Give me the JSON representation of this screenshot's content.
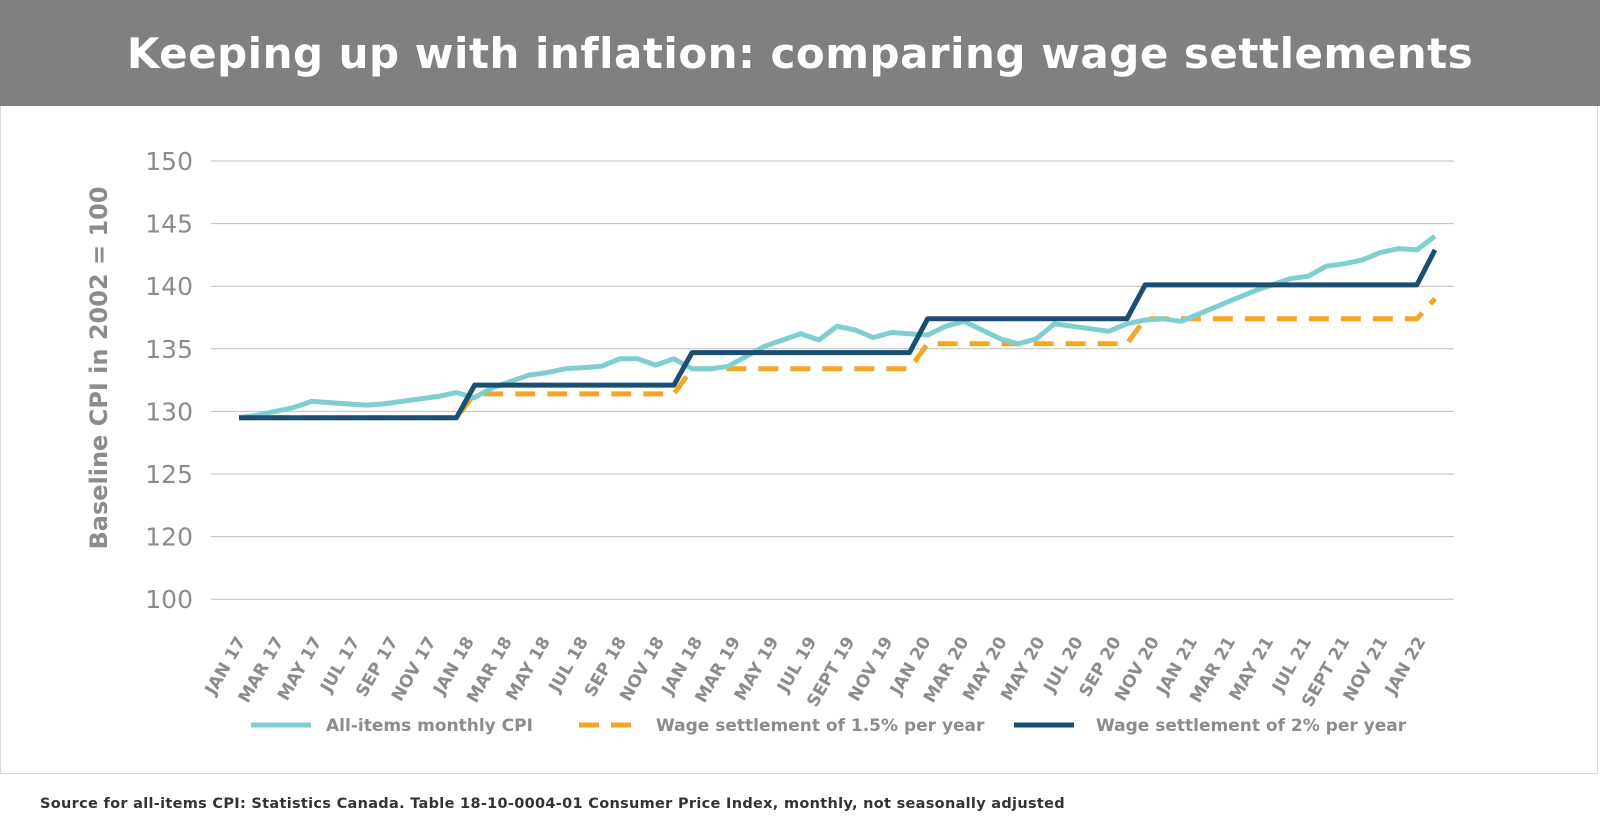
{
  "title": "Keeping up with inflation: comparing wage settlements",
  "source": "Source for all-items CPI: Statistics Canada. Table 18-10-0004-01 Consumer Price Index, monthly, not seasonally adjusted",
  "chart_data": {
    "type": "line",
    "ylabel": "Baseline CPI in 2002 = 100",
    "xlabel": "",
    "y_ticks": [
      "150",
      "145",
      "140",
      "135",
      "130",
      "125",
      "120",
      "100"
    ],
    "ylim_note": "axis break below 120: bottom gridline labeled 100",
    "x_tick_labels": [
      "JAN 17",
      "MAR 17",
      "MAY 17",
      "JUL 17",
      "SEP 17",
      "NOV 17",
      "JAN 18",
      "MAR 18",
      "MAY 18",
      "JUL 18",
      "SEP 18",
      "NOV 18",
      "JAN 18",
      "MAR 19",
      "MAY 19",
      "JUL 19",
      "SEPT 19",
      "NOV 19",
      "JAN 20",
      "MAR 20",
      "MAY 20",
      "MAY 20",
      "JUL 20",
      "SEP 20",
      "NOV 20",
      "JAN 21",
      "MAR 21",
      "MAY 21",
      "JUL 21",
      "SEPT 21",
      "NOV 21",
      "JAN 22"
    ],
    "grid": true,
    "legend_position": "bottom",
    "series": [
      {
        "name": "All-items monthly CPI",
        "color": "#7fcfcf",
        "dash": "solid",
        "values": [
          129.5,
          129.7,
          130.0,
          130.3,
          130.8,
          130.7,
          130.6,
          130.5,
          130.6,
          130.8,
          131.0,
          131.2,
          131.5,
          131.1,
          131.9,
          132.4,
          132.9,
          133.1,
          133.4,
          133.5,
          133.6,
          134.2,
          134.2,
          133.7,
          134.2,
          133.4,
          133.4,
          133.6,
          134.4,
          135.2,
          135.7,
          136.2,
          135.7,
          136.8,
          136.5,
          135.9,
          136.3,
          136.2,
          136.1,
          136.8,
          137.2,
          136.5,
          135.8,
          135.4,
          135.8,
          137.0,
          136.8,
          136.6,
          136.4,
          137.0,
          137.3,
          137.4,
          137.2,
          137.8,
          138.4,
          139.0,
          139.6,
          140.1,
          140.6,
          140.8,
          141.6,
          141.8,
          142.1,
          142.7,
          143.0,
          142.9,
          144.0
        ]
      },
      {
        "name": "Wage settlement of 1.5% per year",
        "color": "#f5a623",
        "dash": "dashed",
        "values": [
          129.5,
          129.5,
          129.5,
          129.5,
          129.5,
          129.5,
          129.5,
          129.5,
          129.5,
          129.5,
          129.5,
          129.5,
          129.5,
          131.4,
          131.4,
          131.4,
          131.4,
          131.4,
          131.4,
          131.4,
          131.4,
          131.4,
          131.4,
          131.4,
          131.4,
          133.4,
          133.4,
          133.4,
          133.4,
          133.4,
          133.4,
          133.4,
          133.4,
          133.4,
          133.4,
          133.4,
          133.4,
          133.4,
          135.4,
          135.4,
          135.4,
          135.4,
          135.4,
          135.4,
          135.4,
          135.4,
          135.4,
          135.4,
          135.4,
          135.4,
          137.4,
          137.4,
          137.4,
          137.4,
          137.4,
          137.4,
          137.4,
          137.4,
          137.4,
          137.4,
          137.4,
          137.4,
          137.4,
          137.4,
          137.4,
          137.4,
          139.0
        ]
      },
      {
        "name": "Wage settlement of 2% per year",
        "color": "#1b4f72",
        "dash": "solid",
        "values": [
          129.5,
          129.5,
          129.5,
          129.5,
          129.5,
          129.5,
          129.5,
          129.5,
          129.5,
          129.5,
          129.5,
          129.5,
          129.5,
          132.1,
          132.1,
          132.1,
          132.1,
          132.1,
          132.1,
          132.1,
          132.1,
          132.1,
          132.1,
          132.1,
          132.1,
          134.7,
          134.7,
          134.7,
          134.7,
          134.7,
          134.7,
          134.7,
          134.7,
          134.7,
          134.7,
          134.7,
          134.7,
          134.7,
          137.4,
          137.4,
          137.4,
          137.4,
          137.4,
          137.4,
          137.4,
          137.4,
          137.4,
          137.4,
          137.4,
          137.4,
          140.1,
          140.1,
          140.1,
          140.1,
          140.1,
          140.1,
          140.1,
          140.1,
          140.1,
          140.1,
          140.1,
          140.1,
          140.1,
          140.1,
          140.1,
          140.1,
          142.9
        ]
      }
    ]
  }
}
